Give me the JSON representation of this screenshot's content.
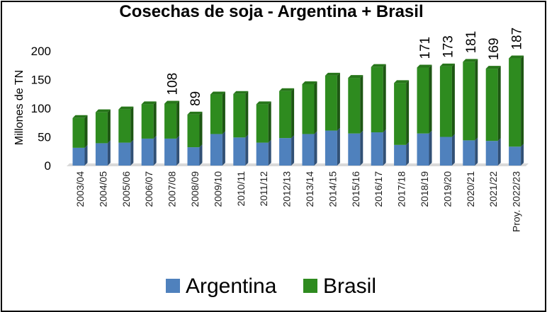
{
  "chart_data": {
    "type": "bar",
    "stacked": true,
    "title": "Cosechas de soja - Argentina + Brasil",
    "ylabel": "Millones de TN",
    "xlabel": "",
    "ylim": [
      0,
      200
    ],
    "yticks": [
      0,
      50,
      100,
      150,
      200
    ],
    "grid": false,
    "legend": "bottom",
    "categories": [
      "2003/04",
      "2004/05",
      "2005/06",
      "2006/07",
      "2007/08",
      "2008/09",
      "2009/10",
      "2010/11",
      "2011/12",
      "2012/13",
      "2013/14",
      "2014/15",
      "2015/16",
      "2016/17",
      "2017/18",
      "2018/19",
      "2019/20",
      "2020/21",
      "2021/22",
      "Proy. 2022/23"
    ],
    "series": [
      {
        "name": "Argentina",
        "color": "#4f81bd",
        "values": [
          31,
          39,
          40,
          47,
          47,
          32,
          55,
          49,
          40,
          48,
          55,
          61,
          56,
          58,
          36,
          56,
          50,
          44,
          43,
          33
        ]
      },
      {
        "name": "Brasil",
        "color": "#2e8b1f",
        "values": [
          52,
          54,
          58,
          60,
          61,
          57,
          69,
          76,
          67,
          82,
          87,
          96,
          97,
          114,
          108,
          115,
          123,
          137,
          126,
          154
        ]
      }
    ],
    "data_labels": [
      {
        "category": "2007/08",
        "text": "108"
      },
      {
        "category": "2008/09",
        "text": "89"
      },
      {
        "category": "2018/19",
        "text": "171"
      },
      {
        "category": "2019/20",
        "text": "173"
      },
      {
        "category": "2020/21",
        "text": "181"
      },
      {
        "category": "2021/22",
        "text": "169"
      },
      {
        "category": "Proy. 2022/23",
        "text": "187"
      }
    ]
  }
}
